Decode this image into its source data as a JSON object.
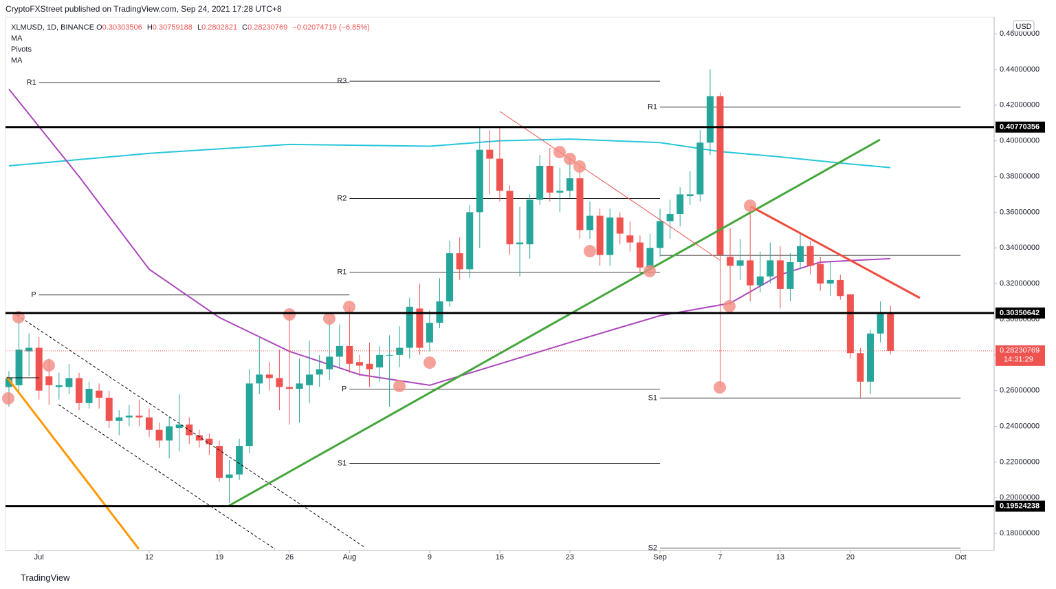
{
  "header": "CryptoFXStreet published on TradingView.com, Sep 24, 2021 17:28 UTC+8",
  "footer": "TradingView",
  "chart_data": {
    "type": "candlestick",
    "symbol": "XLMUSD, 1D, BINANCE",
    "ohlc_labels": [
      "O",
      "H",
      "L",
      "C"
    ],
    "change_text": "−0.02074719 (−6.85%)",
    "indicators": [
      "MA",
      "Pivots",
      "MA"
    ],
    "currency": "USD",
    "countdown": "14:31:29",
    "up_color": "#26a69a",
    "down_color": "#ef5350",
    "categories": [
      "Jun 28",
      "Jun 29",
      "Jun 30",
      "Jul 1",
      "Jul 2",
      "Jul 3",
      "Jul 4",
      "Jul 5",
      "Jul 6",
      "Jul 7",
      "Jul 8",
      "Jul 9",
      "Jul 10",
      "Jul 11",
      "Jul 12",
      "Jul 13",
      "Jul 14",
      "Jul 15",
      "Jul 16",
      "Jul 17",
      "Jul 18",
      "Jul 19",
      "Jul 20",
      "Jul 21",
      "Jul 22",
      "Jul 23",
      "Jul 24",
      "Jul 25",
      "Jul 26",
      "Jul 27",
      "Jul 28",
      "Jul 29",
      "Jul 30",
      "Jul 31",
      "Aug 1",
      "Aug 2",
      "Aug 3",
      "Aug 4",
      "Aug 5",
      "Aug 6",
      "Aug 7",
      "Aug 8",
      "Aug 9",
      "Aug 10",
      "Aug 11",
      "Aug 12",
      "Aug 13",
      "Aug 14",
      "Aug 15",
      "Aug 16",
      "Aug 17",
      "Aug 18",
      "Aug 19",
      "Aug 20",
      "Aug 21",
      "Aug 22",
      "Aug 23",
      "Aug 24",
      "Aug 25",
      "Aug 26",
      "Aug 27",
      "Aug 28",
      "Aug 29",
      "Aug 30",
      "Aug 31",
      "Sep 1",
      "Sep 2",
      "Sep 3",
      "Sep 4",
      "Sep 5",
      "Sep 6",
      "Sep 7",
      "Sep 8",
      "Sep 9",
      "Sep 10",
      "Sep 11",
      "Sep 12",
      "Sep 13",
      "Sep 14",
      "Sep 15",
      "Sep 16",
      "Sep 17",
      "Sep 18",
      "Sep 19",
      "Sep 20",
      "Sep 21",
      "Sep 22",
      "Sep 23",
      "Sep 24"
    ],
    "open": [
      0.262,
      0.263,
      0.282,
      0.284,
      0.268,
      0.262,
      0.262,
      0.267,
      0.253,
      0.26,
      0.256,
      0.243,
      0.245,
      0.246,
      0.245,
      0.238,
      0.232,
      0.239,
      0.241,
      0.235,
      0.233,
      0.229,
      0.211,
      0.213,
      0.229,
      0.264,
      0.269,
      0.267,
      0.262,
      0.261,
      0.263,
      0.269,
      0.272,
      0.279,
      0.285,
      0.276,
      0.275,
      0.273,
      0.28,
      0.28,
      0.284,
      0.306,
      0.287,
      0.298,
      0.31,
      0.337,
      0.328,
      0.36,
      0.395,
      0.39,
      0.372,
      0.342,
      0.342,
      0.367,
      0.386,
      0.371,
      0.372,
      0.379,
      0.35,
      0.358,
      0.336,
      0.357,
      0.347,
      0.343,
      0.329,
      0.34,
      0.355,
      0.359,
      0.369,
      0.37,
      0.399,
      0.425,
      0.335,
      0.33,
      0.333,
      0.319,
      0.324,
      0.333,
      0.317,
      0.332,
      0.341,
      0.331,
      0.32,
      0.322,
      0.314,
      0.281,
      0.265,
      0.292,
      0.30303506
    ],
    "high": [
      0.271,
      0.302,
      0.292,
      0.29,
      0.278,
      0.27,
      0.275,
      0.27,
      0.265,
      0.264,
      0.26,
      0.249,
      0.252,
      0.255,
      0.25,
      0.242,
      0.245,
      0.258,
      0.245,
      0.238,
      0.236,
      0.232,
      0.221,
      0.233,
      0.272,
      0.29,
      0.276,
      0.283,
      0.303,
      0.278,
      0.288,
      0.28,
      0.3,
      0.297,
      0.307,
      0.28,
      0.287,
      0.285,
      0.291,
      0.296,
      0.312,
      0.32,
      0.305,
      0.323,
      0.344,
      0.346,
      0.364,
      0.408,
      0.406,
      0.408,
      0.375,
      0.363,
      0.37,
      0.392,
      0.396,
      0.385,
      0.39,
      0.386,
      0.366,
      0.362,
      0.362,
      0.36,
      0.355,
      0.347,
      0.348,
      0.362,
      0.367,
      0.374,
      0.383,
      0.406,
      0.44,
      0.427,
      0.351,
      0.345,
      0.363,
      0.338,
      0.343,
      0.341,
      0.337,
      0.349,
      0.344,
      0.335,
      0.332,
      0.325,
      0.314,
      0.284,
      0.294,
      0.31,
      0.30759188
    ],
    "low": [
      0.251,
      0.258,
      0.268,
      0.255,
      0.252,
      0.255,
      0.258,
      0.249,
      0.25,
      0.25,
      0.239,
      0.235,
      0.24,
      0.24,
      0.234,
      0.228,
      0.222,
      0.226,
      0.23,
      0.228,
      0.224,
      0.209,
      0.197,
      0.21,
      0.225,
      0.258,
      0.26,
      0.249,
      0.241,
      0.242,
      0.253,
      0.262,
      0.266,
      0.273,
      0.27,
      0.268,
      0.262,
      0.265,
      0.251,
      0.273,
      0.278,
      0.28,
      0.282,
      0.295,
      0.307,
      0.322,
      0.323,
      0.34,
      0.37,
      0.366,
      0.336,
      0.324,
      0.334,
      0.364,
      0.366,
      0.36,
      0.368,
      0.345,
      0.345,
      0.33,
      0.33,
      0.342,
      0.338,
      0.326,
      0.325,
      0.335,
      0.345,
      0.352,
      0.364,
      0.366,
      0.392,
      0.262,
      0.308,
      0.322,
      0.31,
      0.315,
      0.32,
      0.306,
      0.31,
      0.328,
      0.325,
      0.316,
      0.313,
      0.311,
      0.278,
      0.256,
      0.258,
      0.287,
      0.2802821
    ],
    "close": [
      0.267,
      0.283,
      0.284,
      0.26,
      0.263,
      0.263,
      0.267,
      0.253,
      0.261,
      0.256,
      0.243,
      0.245,
      0.246,
      0.245,
      0.238,
      0.232,
      0.24,
      0.241,
      0.235,
      0.232,
      0.23,
      0.211,
      0.213,
      0.229,
      0.264,
      0.269,
      0.267,
      0.262,
      0.261,
      0.264,
      0.269,
      0.272,
      0.279,
      0.285,
      0.275,
      0.274,
      0.272,
      0.28,
      0.28,
      0.284,
      0.307,
      0.284,
      0.298,
      0.31,
      0.337,
      0.328,
      0.36,
      0.395,
      0.39,
      0.372,
      0.342,
      0.343,
      0.367,
      0.386,
      0.371,
      0.372,
      0.379,
      0.35,
      0.358,
      0.336,
      0.357,
      0.348,
      0.343,
      0.329,
      0.34,
      0.355,
      0.359,
      0.37,
      0.37,
      0.399,
      0.425,
      0.336,
      0.33,
      0.333,
      0.319,
      0.324,
      0.333,
      0.317,
      0.332,
      0.341,
      0.33,
      0.32,
      0.322,
      0.313,
      0.281,
      0.265,
      0.292,
      0.303,
      0.28230769
    ],
    "ma_lines": [
      {
        "name": "MA",
        "color": "#26c6da",
        "x": [
          "Jun 28",
          "Jul 12",
          "Jul 26",
          "Aug 9",
          "Aug 16",
          "Aug 23",
          "Sep 1",
          "Sep 7",
          "Sep 13",
          "Sep 20",
          "Sep 24"
        ],
        "values": [
          0.386,
          0.393,
          0.398,
          0.397,
          0.4,
          0.401,
          0.399,
          0.394,
          0.391,
          0.387,
          0.385
        ]
      },
      {
        "name": "MA",
        "color": "#ab47bc",
        "x": [
          "Jun 28",
          "Jul 5",
          "Jul 12",
          "Jul 19",
          "Jul 26",
          "Aug 2",
          "Aug 9",
          "Aug 16",
          "Aug 23",
          "Sep 1",
          "Sep 8",
          "Sep 13",
          "Sep 17",
          "Sep 24"
        ],
        "values": [
          0.429,
          0.38,
          0.328,
          0.301,
          0.282,
          0.269,
          0.263,
          0.275,
          0.287,
          0.302,
          0.309,
          0.325,
          0.332,
          0.334
        ]
      }
    ],
    "levels": [
      {
        "value": 0.40770356,
        "label": "0.40770356"
      },
      {
        "value": 0.30350642,
        "label": "0.30350642"
      },
      {
        "value": 0.19524238,
        "label": "0.19524238"
      }
    ],
    "last_price_label": "0.28230769",
    "pivots": [
      {
        "start": "Jul 1",
        "end": "Aug 1",
        "levels": [
          0.4327,
          0.3136
        ],
        "labels": [
          "R1",
          "P"
        ]
      },
      {
        "start": "Aug 1",
        "end": "Sep 1",
        "levels": [
          0.4334,
          0.3677,
          0.3264,
          0.2608,
          0.2192
        ],
        "labels": [
          "R3",
          "R2",
          "R1",
          "P",
          "S1"
        ]
      },
      {
        "start": "Sep 1",
        "end": "Oct 1",
        "levels": [
          0.4189,
          0.3358,
          0.2558,
          0.1718
        ],
        "labels": [
          "R1",
          null,
          "S1",
          "S2"
        ]
      }
    ],
    "ylim": [
      0.1704,
      0.4693
    ],
    "yticks": [
      {
        "value": 0.18,
        "label": "0.18000000"
      },
      {
        "value": 0.2,
        "label": "0.20000000"
      },
      {
        "value": 0.22,
        "label": "0.22000000"
      },
      {
        "value": 0.24,
        "label": "0.24000000"
      },
      {
        "value": 0.26,
        "label": "0.26000000"
      },
      {
        "value": 0.28,
        "label": "0.28000000"
      },
      {
        "value": 0.3,
        "label": "0.30000000"
      },
      {
        "value": 0.32,
        "label": "0.32000000"
      },
      {
        "value": 0.34,
        "label": "0.34000000"
      },
      {
        "value": 0.36,
        "label": "0.36000000"
      },
      {
        "value": 0.38,
        "label": "0.38000000"
      },
      {
        "value": 0.4,
        "label": "0.40000000"
      },
      {
        "value": 0.42,
        "label": "0.42000000"
      },
      {
        "value": 0.44,
        "label": "0.44000000"
      },
      {
        "value": 0.46,
        "label": "0.46000000"
      }
    ],
    "xticks": [
      {
        "value": "Jul 1",
        "label": "Jul"
      },
      {
        "value": "Jul 12",
        "label": "12"
      },
      {
        "value": "Jul 19",
        "label": "19"
      },
      {
        "value": "Jul 26",
        "label": "26"
      },
      {
        "value": "Aug 1",
        "label": "Aug"
      },
      {
        "value": "Aug 9",
        "label": "9"
      },
      {
        "value": "Aug 16",
        "label": "16"
      },
      {
        "value": "Aug 23",
        "label": "23"
      },
      {
        "value": "Sep 1",
        "label": "Sep"
      },
      {
        "value": "Sep 7",
        "label": "7"
      },
      {
        "value": "Sep 13",
        "label": "13"
      },
      {
        "value": "Sep 20",
        "label": "20"
      },
      {
        "value": "Oct 1",
        "label": "Oct"
      }
    ]
  }
}
